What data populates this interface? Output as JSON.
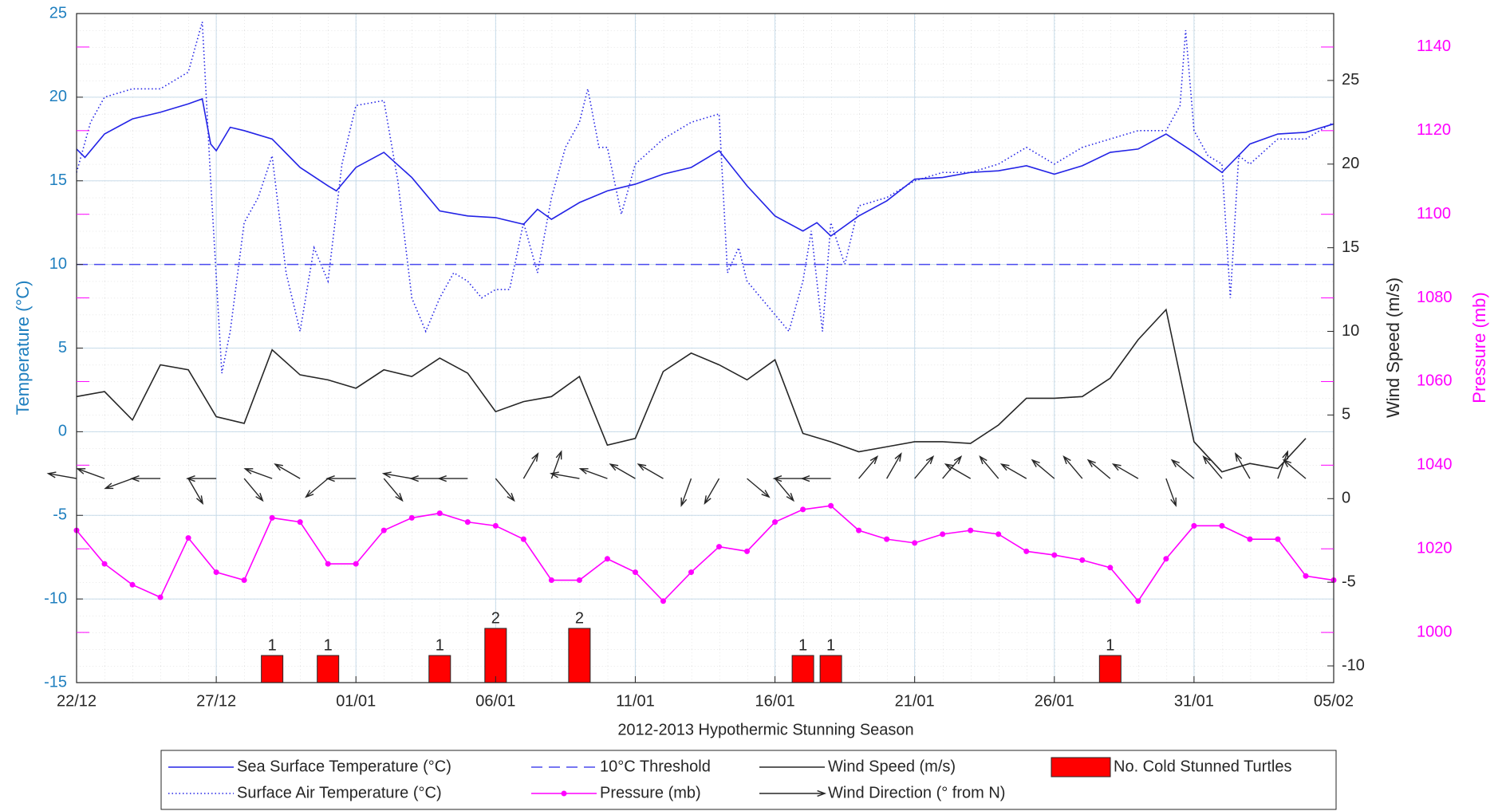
{
  "chart_data": {
    "type": "line",
    "xlabel": "2012-2013 Hypothermic Stunning Season",
    "ylabel": "Temperature (°C)",
    "y2label": "Wind Speed (m/s)",
    "y3label": "Pressure (mb)",
    "xlim": [
      0,
      45
    ],
    "xticks": [
      {
        "value": 0,
        "label": "22/12"
      },
      {
        "value": 5,
        "label": "27/12"
      },
      {
        "value": 10,
        "label": "01/01"
      },
      {
        "value": 15,
        "label": "06/01"
      },
      {
        "value": 20,
        "label": "11/01"
      },
      {
        "value": 25,
        "label": "16/01"
      },
      {
        "value": 30,
        "label": "21/01"
      },
      {
        "value": 35,
        "label": "26/01"
      },
      {
        "value": 40,
        "label": "31/01"
      },
      {
        "value": 45,
        "label": "05/02"
      }
    ],
    "ylim": [
      -15,
      25
    ],
    "yticks": [
      -15,
      -10,
      -5,
      0,
      5,
      10,
      15,
      20,
      25
    ],
    "y2lim": [
      -11,
      29
    ],
    "y2ticks": [
      -10,
      -5,
      0,
      5,
      10,
      15,
      20,
      25
    ],
    "y3lim": [
      988,
      1148
    ],
    "y3ticks": [
      1000,
      1020,
      1040,
      1060,
      1080,
      1100,
      1120,
      1140
    ],
    "grid": true,
    "series": [
      {
        "name": "Sea Surface Temperature (°C)",
        "color": "#2323e6",
        "style": "solid",
        "x": [
          0,
          0.3,
          1,
          2,
          3,
          4,
          4.5,
          4.8,
          5,
          5.5,
          6,
          7,
          8,
          9,
          9.3,
          10,
          11,
          12,
          13,
          14,
          15,
          16,
          16.5,
          17,
          18,
          19,
          20,
          21,
          22,
          23,
          24,
          25,
          26,
          26.5,
          27,
          28,
          29,
          30,
          31,
          32,
          33,
          34,
          35,
          36,
          37,
          38,
          39,
          40,
          41,
          42,
          43,
          44,
          45
        ],
        "values": [
          16.9,
          16.4,
          17.8,
          18.7,
          19.1,
          19.6,
          19.9,
          17.2,
          16.8,
          18.2,
          18.0,
          17.5,
          15.8,
          14.7,
          14.4,
          15.8,
          16.7,
          15.2,
          13.2,
          12.9,
          12.8,
          12.4,
          13.3,
          12.7,
          13.7,
          14.4,
          14.8,
          15.4,
          15.8,
          16.8,
          14.7,
          12.9,
          12.0,
          12.5,
          11.7,
          12.9,
          13.8,
          15.1,
          15.2,
          15.5,
          15.6,
          15.9,
          15.4,
          15.9,
          16.7,
          16.9,
          17.8,
          16.7,
          15.5,
          17.2,
          17.8,
          17.9,
          18.4
        ]
      },
      {
        "name": "Surface Air Temperature (°C)",
        "color": "#2323e6",
        "style": "dotted",
        "x": [
          0,
          0.5,
          1,
          2,
          3,
          4,
          4.5,
          4.8,
          5.2,
          5.5,
          6,
          6.5,
          7,
          7.5,
          8,
          8.5,
          9,
          9.5,
          10,
          11,
          11.5,
          12,
          12.5,
          13,
          13.5,
          14,
          14.5,
          15,
          15.5,
          16,
          16.5,
          17,
          17.5,
          18,
          18.3,
          18.7,
          19,
          19.5,
          20,
          21,
          22,
          23,
          23.3,
          23.7,
          24,
          24.5,
          25,
          25.5,
          26,
          26.3,
          26.7,
          27,
          27.5,
          28,
          29,
          30,
          31,
          32,
          33,
          34,
          35,
          36,
          37,
          38,
          39,
          39.5,
          39.7,
          40,
          40.5,
          41,
          41.3,
          41.6,
          42,
          43,
          44,
          45
        ],
        "values": [
          15.5,
          18.5,
          20.0,
          20.5,
          20.5,
          21.5,
          24.5,
          15,
          3.5,
          6,
          12.5,
          14,
          16.5,
          9.5,
          6,
          11,
          9,
          16,
          19.5,
          19.8,
          15,
          8,
          6,
          8,
          9.5,
          9,
          8,
          8.5,
          8.5,
          12.5,
          9.5,
          14,
          17,
          18.5,
          20.5,
          17,
          17,
          13,
          16,
          17.5,
          18.5,
          19,
          9.5,
          11,
          9,
          8,
          7,
          6,
          9,
          12,
          6,
          12.5,
          10,
          13.5,
          14,
          15,
          15.5,
          15.5,
          16,
          17,
          16,
          17,
          17.5,
          18,
          18,
          19.5,
          24,
          18,
          16.5,
          16,
          8,
          16.5,
          16,
          17.5,
          17.5,
          18.5
        ]
      },
      {
        "name": "10°C  Threshold",
        "color": "#4a4aee",
        "style": "dashed",
        "y": 10
      },
      {
        "name": "Wind Speed (m/s)",
        "color": "#262626",
        "style": "solid",
        "axis": "y2",
        "x": [
          0,
          1,
          2,
          3,
          4,
          5,
          6,
          7,
          8,
          9,
          10,
          11,
          12,
          13,
          14,
          15,
          16,
          17,
          18,
          19,
          20,
          21,
          22,
          23,
          24,
          25,
          26,
          27,
          28,
          29,
          30,
          31,
          32,
          33,
          34,
          35,
          36,
          37,
          38,
          39,
          40,
          41,
          42,
          43,
          44
        ],
        "values": [
          6.1,
          6.4,
          4.7,
          8.0,
          7.7,
          4.9,
          4.5,
          8.9,
          7.4,
          7.1,
          6.6,
          7.7,
          7.3,
          8.4,
          7.5,
          5.2,
          5.8,
          6.1,
          7.3,
          3.2,
          3.6,
          7.6,
          8.7,
          8.0,
          7.1,
          8.3,
          3.9,
          3.4,
          2.8,
          3.1,
          3.4,
          3.4,
          3.3,
          4.4,
          6.0,
          6.0,
          6.1,
          7.2,
          9.5,
          11.3,
          3.4,
          1.6,
          2.1,
          1.8,
          3.6
        ]
      },
      {
        "name": "Pressure (mb)",
        "color": "#ff00ff",
        "style": "marker",
        "axis": "y3",
        "x": [
          0,
          1,
          2,
          3,
          4,
          5,
          6,
          7,
          8,
          9,
          10,
          11,
          12,
          13,
          14,
          15,
          16,
          17,
          18,
          19,
          20,
          21,
          22,
          23,
          24,
          25,
          26,
          27,
          28,
          29,
          30,
          31,
          32,
          33,
          34,
          35,
          36,
          37,
          38,
          39,
          40,
          41,
          42,
          43,
          44,
          45
        ],
        "values": [
          1024.4,
          1016.4,
          1011.4,
          1008.4,
          1022.6,
          1014.4,
          1012.5,
          1027.4,
          1026.4,
          1016.4,
          1016.4,
          1024.4,
          1027.4,
          1028.5,
          1026.4,
          1025.5,
          1022.3,
          1012.5,
          1012.5,
          1017.6,
          1014.4,
          1007.5,
          1014.4,
          1020.5,
          1019.4,
          1026.4,
          1029.4,
          1030.3,
          1024.4,
          1022.3,
          1021.4,
          1023.5,
          1024.4,
          1023.5,
          1019.4,
          1018.5,
          1017.3,
          1015.5,
          1007.5,
          1017.6,
          1025.5,
          1025.5,
          1022.3,
          1022.3,
          1013.5,
          1012.5
        ]
      },
      {
        "name": "Wind Direction (° from N)",
        "color": "#262626",
        "style": "arrow",
        "x": [
          0,
          1,
          2,
          3,
          4,
          5,
          6,
          7,
          8,
          9,
          10,
          11,
          12,
          13,
          14,
          15,
          16,
          17,
          18,
          19,
          20,
          21,
          22,
          23,
          24,
          25,
          26,
          27,
          28,
          29,
          30,
          31,
          32,
          33,
          34,
          35,
          36,
          37,
          38,
          39,
          40,
          41,
          42,
          43,
          44
        ],
        "values": [
          280,
          290,
          250,
          270,
          150,
          270,
          140,
          290,
          300,
          230,
          270,
          140,
          280,
          270,
          270,
          140,
          30,
          20,
          280,
          290,
          300,
          300,
          200,
          210,
          130,
          140,
          270,
          270,
          40,
          30,
          40,
          40,
          300,
          320,
          300,
          310,
          320,
          310,
          300,
          160,
          310,
          320,
          330,
          20,
          310
        ]
      },
      {
        "name": "No. Cold Stunned Turtles",
        "color": "#ff0000",
        "style": "bar",
        "x": [
          7,
          9,
          13,
          15,
          18,
          26,
          27,
          37
        ],
        "values": [
          1,
          1,
          1,
          2,
          2,
          1,
          1,
          1
        ]
      }
    ]
  }
}
